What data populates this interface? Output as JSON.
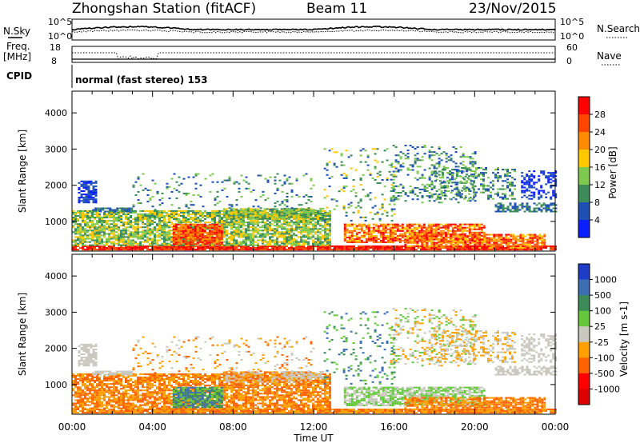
{
  "header": {
    "station": "Zhongshan Station (fitACF)",
    "beam": "Beam 11",
    "date": "23/Nov/2015"
  },
  "top_panels": {
    "nsky_label": "N.Sky",
    "nsky_ticks": [
      "10^5",
      "10^0"
    ],
    "nsearch_label": "N.Search",
    "nsearch_ticks": [
      "10^5",
      "10^0"
    ],
    "freq_label_1": "Freq.",
    "freq_label_2": "[MHz]",
    "freq_ticks": [
      "18",
      "8"
    ],
    "nave_label": "Nave",
    "nave_ticks": [
      "60",
      "0"
    ],
    "cpid_label": "CPID",
    "cpid_value": "normal (fast stereo) 153"
  },
  "chart_data": [
    {
      "type": "heatmap",
      "title": "",
      "ylabel": "Slant Range [km]",
      "xlabel": "",
      "y_ticks": [
        1000,
        2000,
        3000,
        4000
      ],
      "ylim": [
        180,
        4600
      ],
      "x_ticks": [
        "00:00",
        "04:00",
        "08:00",
        "12:00",
        "16:00",
        "20:00",
        "00:00"
      ],
      "colorbar": {
        "label": "Power [dB]",
        "ticks": [
          "28",
          "24",
          "20",
          "16",
          "12",
          "8",
          "4"
        ],
        "range": [
          0,
          32
        ],
        "colors": [
          "#ff0000",
          "#ff4500",
          "#ff8c00",
          "#ffc800",
          "#7ec850",
          "#3c8c5a",
          "#1e50b4",
          "#0a1eff"
        ]
      },
      "grid": false
    },
    {
      "type": "heatmap",
      "title": "",
      "ylabel": "Slant Range [km]",
      "xlabel": "Time UT",
      "y_ticks": [
        1000,
        2000,
        3000,
        4000
      ],
      "ylim": [
        180,
        4600
      ],
      "x_ticks": [
        "00:00",
        "04:00",
        "08:00",
        "12:00",
        "16:00",
        "20:00",
        "00:00"
      ],
      "colorbar": {
        "label": "Velocity [m s-1]",
        "ticks": [
          "1000",
          "500",
          "100",
          "25",
          "-25",
          "-100",
          "-500",
          "-1000"
        ],
        "colors": [
          "#1e3cc8",
          "#3c6eb4",
          "#3c8c5a",
          "#64c83c",
          "#c8c8be",
          "#ffa000",
          "#ff6400",
          "#ff0000",
          "#dc0000"
        ]
      },
      "grid": false
    }
  ]
}
